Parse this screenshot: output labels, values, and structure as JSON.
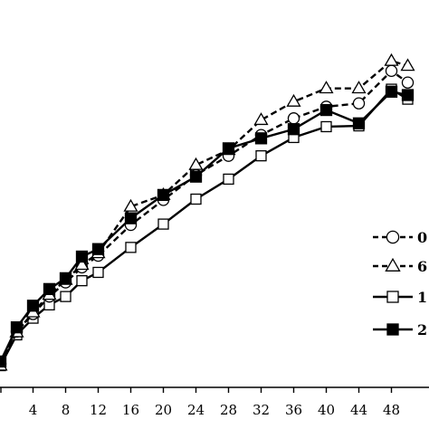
{
  "chart_data": {
    "type": "line",
    "title": "",
    "xlabel": "",
    "ylabel": "",
    "x_ticks": [
      4,
      8,
      12,
      16,
      20,
      24,
      28,
      32,
      36,
      40,
      44,
      48
    ],
    "xlim": [
      0,
      50
    ],
    "grid": false,
    "legend_position": "right",
    "series": [
      {
        "name": "0",
        "marker": "circle-open",
        "line": "dashed",
        "x": [
          0,
          2,
          4,
          6,
          8,
          10,
          12,
          16,
          20,
          24,
          28,
          32,
          36,
          40,
          44,
          48,
          50
        ],
        "y": [
          10.4,
          18.2,
          22.4,
          26.6,
          30.0,
          33.6,
          36.4,
          43.8,
          49.8,
          55.8,
          60.4,
          65.4,
          69.4,
          72.2,
          73.0,
          80.8,
          78.0
        ]
      },
      {
        "name": "6",
        "marker": "triangle-open",
        "line": "dashed",
        "x": [
          0,
          2,
          4,
          6,
          8,
          10,
          12,
          16,
          20,
          24,
          28,
          32,
          36,
          40,
          44,
          48,
          50
        ],
        "y": [
          10.0,
          18.0,
          22.8,
          27.0,
          30.6,
          34.2,
          37.0,
          48.2,
          51.0,
          58.2,
          61.8,
          69.0,
          73.4,
          76.6,
          76.6,
          83.2,
          82.0
        ]
      },
      {
        "name": "1",
        "marker": "square-open",
        "line": "solid",
        "x": [
          0,
          2,
          4,
          6,
          8,
          10,
          12,
          16,
          20,
          24,
          28,
          32,
          36,
          40,
          44,
          48,
          50
        ],
        "y": [
          10.0,
          17.4,
          21.4,
          24.6,
          26.6,
          30.4,
          32.4,
          38.4,
          44.0,
          50.0,
          54.8,
          60.4,
          64.8,
          67.4,
          67.6,
          76.4,
          74.0
        ]
      },
      {
        "name": "2",
        "marker": "square-filled",
        "line": "solid",
        "x": [
          0,
          2,
          4,
          6,
          8,
          10,
          12,
          16,
          20,
          24,
          28,
          32,
          36,
          40,
          44,
          48,
          50
        ],
        "y": [
          11.0,
          19.2,
          24.4,
          28.4,
          31.0,
          36.2,
          38.0,
          45.4,
          51.0,
          55.4,
          62.2,
          64.6,
          66.8,
          71.4,
          68.2,
          75.8,
          75.0
        ]
      }
    ]
  }
}
